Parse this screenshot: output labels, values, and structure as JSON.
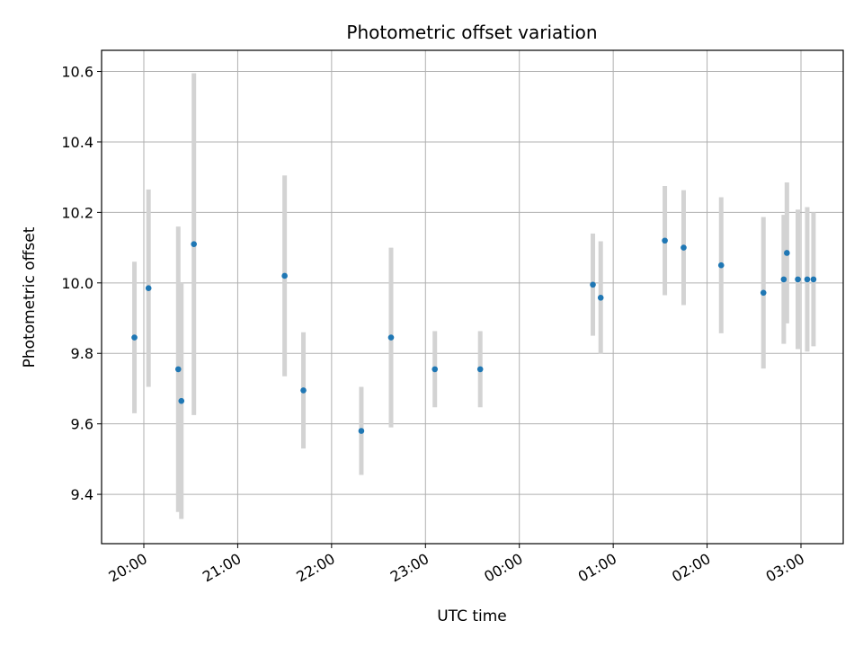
{
  "chart_data": {
    "type": "scatter",
    "title": "Photometric offset variation",
    "xlabel": "UTC time",
    "ylabel": "Photometric offset",
    "x_axis_type": "time",
    "xlim": [
      "19:33",
      "03:27"
    ],
    "ylim": [
      9.26,
      10.66
    ],
    "xticks": [
      "20:00",
      "21:00",
      "22:00",
      "23:00",
      "00:00",
      "01:00",
      "02:00",
      "03:00"
    ],
    "yticks": [
      "9.4",
      "9.6",
      "9.8",
      "10.0",
      "10.2",
      "10.4",
      "10.6"
    ],
    "grid": true,
    "point_color": "#1f77b4",
    "errorbar_color": "#d3d3d3",
    "points": [
      {
        "time": "19:54",
        "y": 9.845,
        "err": 0.215
      },
      {
        "time": "20:03",
        "y": 9.985,
        "err": 0.28
      },
      {
        "time": "20:22",
        "y": 9.755,
        "err": 0.405
      },
      {
        "time": "20:24",
        "y": 9.665,
        "err": 0.335
      },
      {
        "time": "20:32",
        "y": 10.11,
        "err": 0.485
      },
      {
        "time": "21:30",
        "y": 10.02,
        "err": 0.285
      },
      {
        "time": "21:42",
        "y": 9.695,
        "err": 0.165
      },
      {
        "time": "22:19",
        "y": 9.58,
        "err": 0.125
      },
      {
        "time": "22:38",
        "y": 9.845,
        "err": 0.255
      },
      {
        "time": "23:06",
        "y": 9.755,
        "err": 0.108
      },
      {
        "time": "23:35",
        "y": 9.755,
        "err": 0.108
      },
      {
        "time": "00:47",
        "y": 9.995,
        "err": 0.145
      },
      {
        "time": "00:52",
        "y": 9.958,
        "err": 0.16
      },
      {
        "time": "01:33",
        "y": 10.12,
        "err": 0.155
      },
      {
        "time": "01:45",
        "y": 10.1,
        "err": 0.163
      },
      {
        "time": "02:09",
        "y": 10.05,
        "err": 0.193
      },
      {
        "time": "02:36",
        "y": 9.972,
        "err": 0.215
      },
      {
        "time": "02:49",
        "y": 10.01,
        "err": 0.183
      },
      {
        "time": "02:51",
        "y": 10.085,
        "err": 0.2
      },
      {
        "time": "02:58",
        "y": 10.01,
        "err": 0.198
      },
      {
        "time": "03:04",
        "y": 10.01,
        "err": 0.205
      },
      {
        "time": "03:08",
        "y": 10.01,
        "err": 0.19
      }
    ]
  }
}
